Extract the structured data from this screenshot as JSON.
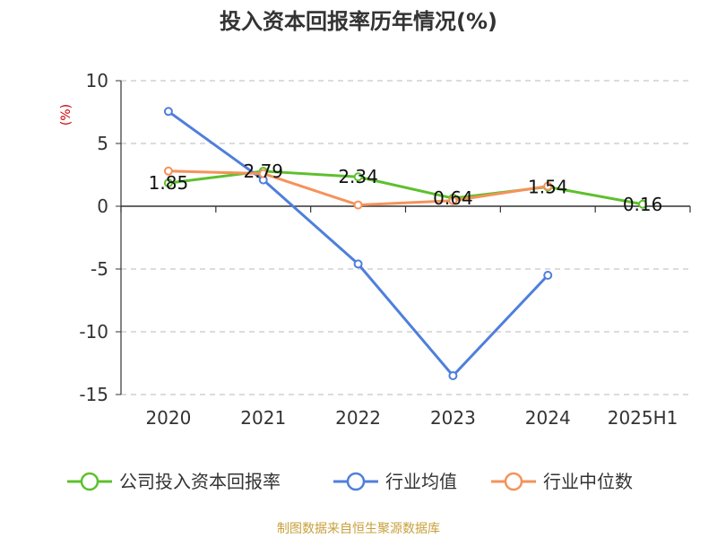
{
  "chart_data": {
    "type": "line",
    "title": "投入资本回报率历年情况(%)",
    "ylabel": "(%)",
    "categories": [
      "2020",
      "2021",
      "2022",
      "2023",
      "2024",
      "2025H1"
    ],
    "yticks": [
      "10",
      "5",
      "0",
      "-5",
      "-10",
      "-15"
    ],
    "ylim": [
      -15,
      10
    ],
    "grid": true,
    "legend_position": "bottom",
    "series": [
      {
        "name": "公司投入资本回报率",
        "color": "#5dc02d",
        "values": [
          1.85,
          2.79,
          2.34,
          0.64,
          1.54,
          0.16
        ],
        "labels": [
          "1.85",
          "2.79",
          "2.34",
          "0.64",
          "1.54",
          "0.16"
        ]
      },
      {
        "name": "行业均值",
        "color": "#4f7fdb",
        "values": [
          7.55,
          2.1,
          -4.6,
          -13.5,
          -5.5,
          null
        ]
      },
      {
        "name": "行业中位数",
        "color": "#f5925a",
        "values": [
          2.8,
          2.6,
          0.1,
          0.45,
          1.6,
          null
        ]
      }
    ]
  },
  "source": "制图数据来自恒生聚源数据库"
}
